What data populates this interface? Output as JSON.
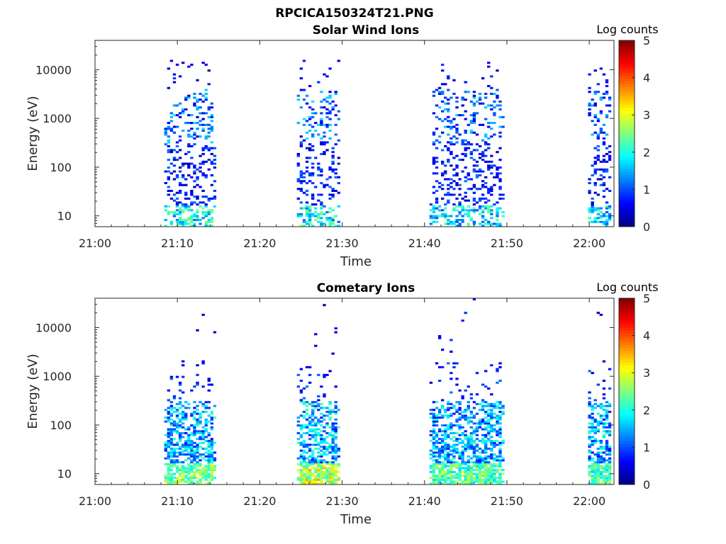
{
  "figure_title": "RPCICA150324T21.PNG",
  "chart_data": [
    {
      "type": "heatmap",
      "title": "Solar Wind Ions",
      "xlabel": "Time",
      "ylabel": "Energy (eV)",
      "x_ticks": [
        "21:00",
        "21:10",
        "21:20",
        "21:30",
        "21:40",
        "21:50",
        "22:00"
      ],
      "x_range_minutes": [
        0,
        63
      ],
      "y_scale": "log",
      "y_ticks": [
        10,
        100,
        1000,
        10000
      ],
      "y_tick_labels": [
        "10",
        "100",
        "1000",
        "10000"
      ],
      "ylim": [
        6,
        40000
      ],
      "colorbar": {
        "label": "Log counts",
        "range": [
          0,
          5
        ],
        "ticks": [
          "0",
          "1",
          "2",
          "3",
          "4",
          "5"
        ],
        "colormap": "jet"
      },
      "bursts": [
        {
          "start": 8.5,
          "end": 14.8,
          "low_energy_peak": 2.6,
          "mid_peak": 1.8
        },
        {
          "start": 24.6,
          "end": 29.6,
          "low_energy_peak": 2.7,
          "mid_peak": 1.8
        },
        {
          "start": 40.6,
          "end": 49.8,
          "low_energy_peak": 2.4,
          "mid_peak": 1.7
        },
        {
          "start": 59.7,
          "end": 62.8,
          "low_energy_peak": 2.4,
          "mid_peak": 1.7
        }
      ]
    },
    {
      "type": "heatmap",
      "title": "Cometary Ions",
      "xlabel": "Time",
      "ylabel": "Energy (eV)",
      "x_ticks": [
        "21:00",
        "21:10",
        "21:20",
        "21:30",
        "21:40",
        "21:50",
        "22:00"
      ],
      "x_range_minutes": [
        0,
        63
      ],
      "y_scale": "log",
      "y_ticks": [
        10,
        100,
        1000,
        10000
      ],
      "y_tick_labels": [
        "10",
        "100",
        "1000",
        "10000"
      ],
      "ylim": [
        6,
        40000
      ],
      "colorbar": {
        "label": "Log counts",
        "range": [
          0,
          5
        ],
        "ticks": [
          "0",
          "1",
          "2",
          "3",
          "4",
          "5"
        ],
        "colormap": "jet"
      },
      "bursts": [
        {
          "start": 8.3,
          "end": 14.8,
          "low_energy_peak": 3.2,
          "mid_peak": 2.2
        },
        {
          "start": 24.6,
          "end": 29.6,
          "low_energy_peak": 3.6,
          "mid_peak": 2.3
        },
        {
          "start": 40.6,
          "end": 49.8,
          "low_energy_peak": 3.0,
          "mid_peak": 2.2
        },
        {
          "start": 59.7,
          "end": 62.8,
          "low_energy_peak": 2.9,
          "mid_peak": 2.1
        }
      ]
    }
  ]
}
